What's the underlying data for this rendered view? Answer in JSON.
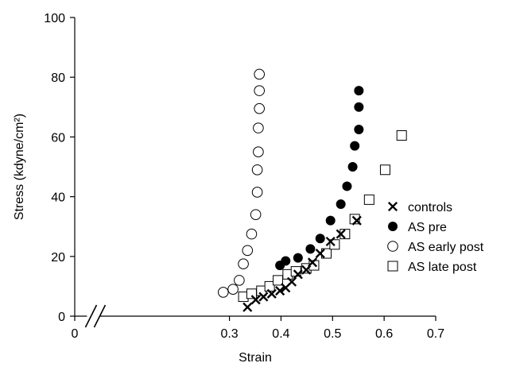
{
  "chart_data": {
    "type": "scatter",
    "xlabel": "Strain",
    "ylabel": "Stress (kdyne/cm²)",
    "xlim": [
      0,
      0.7
    ],
    "ylim": [
      0,
      100
    ],
    "x_axis_break": "between 0 and 0.3",
    "x_ticks": [
      {
        "value": 0,
        "label": "0"
      },
      {
        "value": 0.3,
        "label": "0.3"
      },
      {
        "value": 0.4,
        "label": "0.4"
      },
      {
        "value": 0.5,
        "label": "0.5"
      },
      {
        "value": 0.6,
        "label": "0.6"
      },
      {
        "value": 0.7,
        "label": "0.7"
      }
    ],
    "y_ticks": [
      {
        "value": 0,
        "label": "0"
      },
      {
        "value": 20,
        "label": "20"
      },
      {
        "value": 40,
        "label": "40"
      },
      {
        "value": 60,
        "label": "60"
      },
      {
        "value": 80,
        "label": "80"
      },
      {
        "value": 100,
        "label": "100"
      }
    ],
    "grid": false,
    "legend_position": "right",
    "series": [
      {
        "name": "controls",
        "marker": "x",
        "points": [
          [
            0.335,
            3.0
          ],
          [
            0.351,
            5.5
          ],
          [
            0.366,
            6.5
          ],
          [
            0.382,
            7.5
          ],
          [
            0.398,
            8.5
          ],
          [
            0.409,
            9.5
          ],
          [
            0.421,
            11.5
          ],
          [
            0.433,
            14.0
          ],
          [
            0.449,
            15.5
          ],
          [
            0.461,
            18.0
          ],
          [
            0.476,
            21.0
          ],
          [
            0.496,
            25.0
          ],
          [
            0.516,
            27.5
          ],
          [
            0.547,
            32.0
          ]
        ]
      },
      {
        "name": "AS pre",
        "marker": "filled-circle",
        "points": [
          [
            0.398,
            17.0
          ],
          [
            0.409,
            18.5
          ],
          [
            0.433,
            19.5
          ],
          [
            0.457,
            22.5
          ],
          [
            0.476,
            26.0
          ],
          [
            0.496,
            32.0
          ],
          [
            0.516,
            37.5
          ],
          [
            0.528,
            43.5
          ],
          [
            0.539,
            50.0
          ],
          [
            0.543,
            57.0
          ],
          [
            0.551,
            62.5
          ],
          [
            0.551,
            70.0
          ],
          [
            0.551,
            75.5
          ]
        ]
      },
      {
        "name": "AS early post",
        "marker": "open-circle",
        "points": [
          [
            0.288,
            8.0
          ],
          [
            0.307,
            9.0
          ],
          [
            0.319,
            12.0
          ],
          [
            0.327,
            17.5
          ],
          [
            0.335,
            22.0
          ],
          [
            0.343,
            27.5
          ],
          [
            0.351,
            34.0
          ],
          [
            0.354,
            41.5
          ],
          [
            0.354,
            49.0
          ],
          [
            0.356,
            55.0
          ],
          [
            0.356,
            63.0
          ],
          [
            0.358,
            69.5
          ],
          [
            0.358,
            75.5
          ],
          [
            0.358,
            81.0
          ]
        ]
      },
      {
        "name": "AS late post",
        "marker": "open-square",
        "points": [
          [
            0.327,
            6.5
          ],
          [
            0.343,
            7.5
          ],
          [
            0.362,
            8.5
          ],
          [
            0.378,
            10.0
          ],
          [
            0.394,
            12.0
          ],
          [
            0.413,
            14.0
          ],
          [
            0.429,
            15.0
          ],
          [
            0.449,
            16.0
          ],
          [
            0.464,
            17.0
          ],
          [
            0.488,
            21.0
          ],
          [
            0.504,
            24.0
          ],
          [
            0.524,
            27.5
          ],
          [
            0.543,
            32.5
          ],
          [
            0.571,
            39.0
          ],
          [
            0.602,
            49.0
          ],
          [
            0.634,
            60.5
          ]
        ]
      }
    ]
  }
}
